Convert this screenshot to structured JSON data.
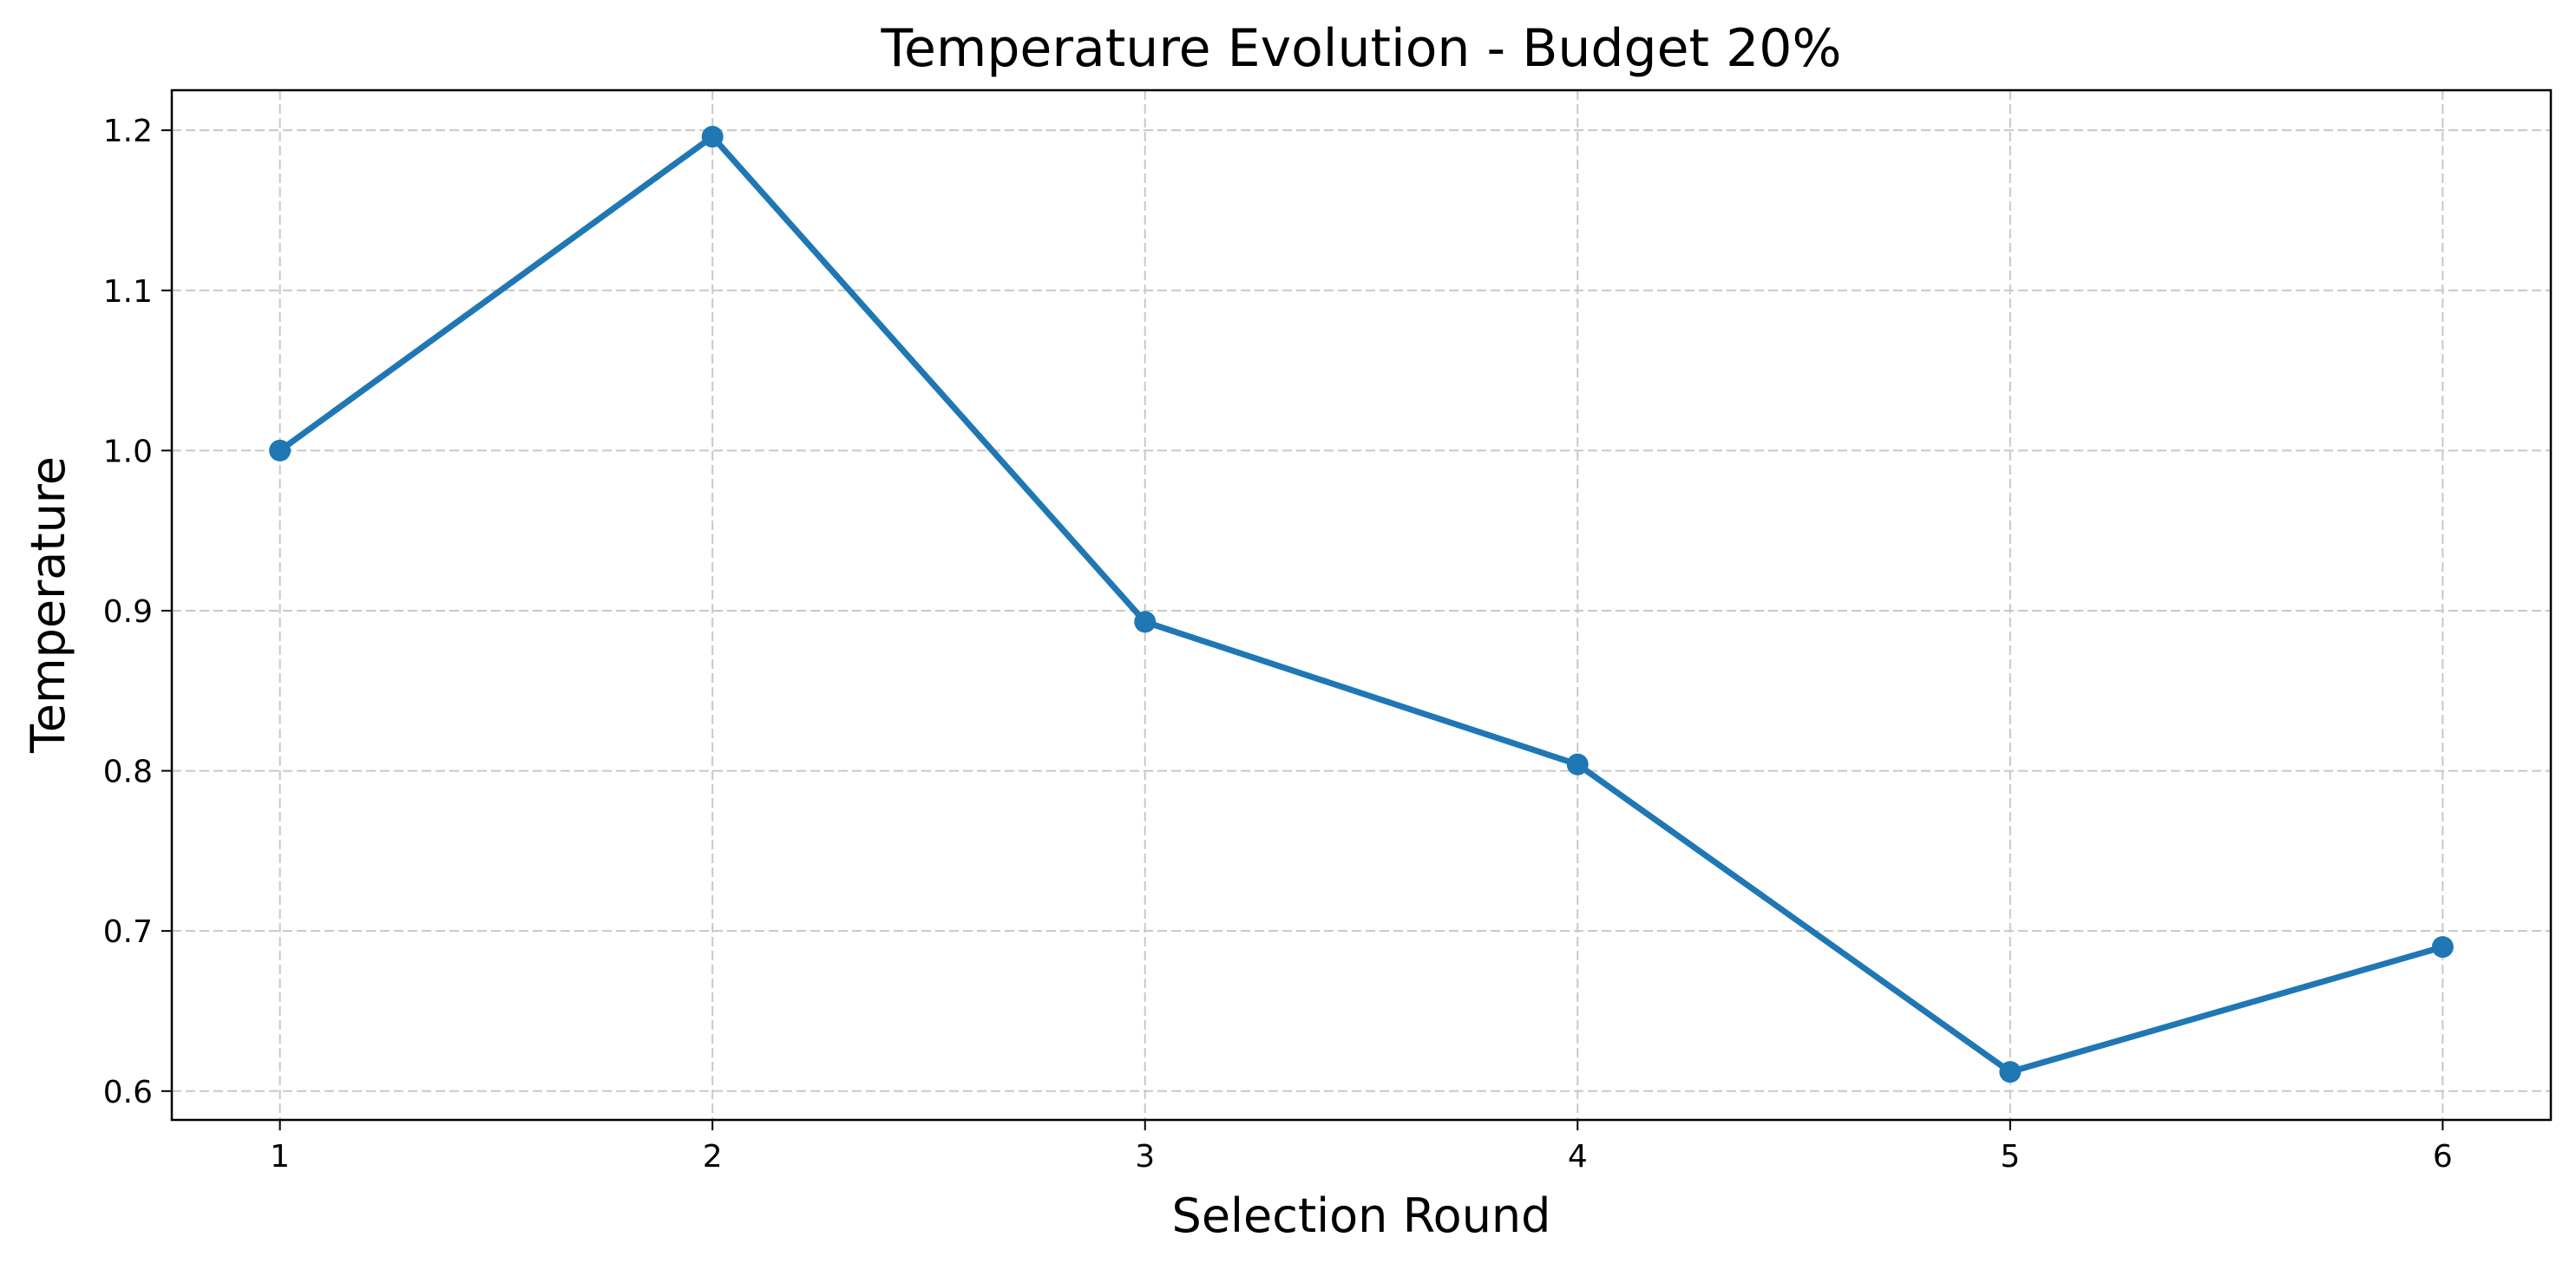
{
  "chart_data": {
    "type": "line",
    "title": "Temperature Evolution - Budget 20%",
    "xlabel": "Selection Round",
    "ylabel": "Temperature",
    "x": [
      1,
      2,
      3,
      4,
      5,
      6
    ],
    "x_ticks": [
      1,
      2,
      3,
      4,
      5,
      6
    ],
    "y_ticks": [
      "0.6",
      "0.7",
      "0.8",
      "0.9",
      "1.0",
      "1.1",
      "1.2"
    ],
    "xlim": [
      0.75,
      6.25
    ],
    "ylim": [
      0.582,
      1.225
    ],
    "series": [
      {
        "values": [
          1.0,
          1.196,
          0.893,
          0.804,
          0.612,
          0.69
        ],
        "color": "#1f77b4",
        "marker": "circle"
      }
    ],
    "grid": true,
    "grid_style": "dashed"
  }
}
